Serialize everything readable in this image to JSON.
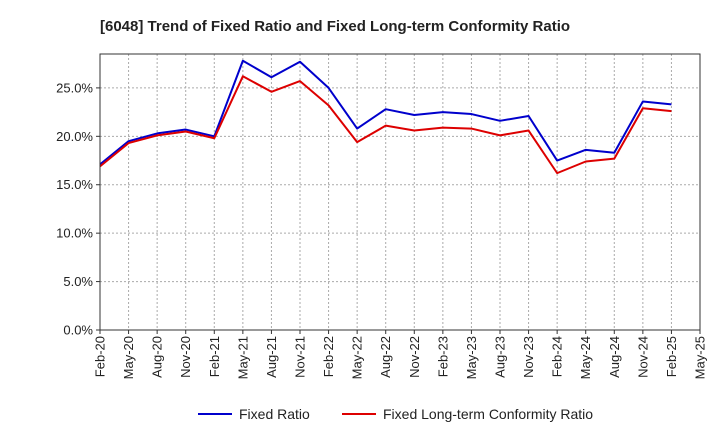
{
  "chart_data": {
    "type": "line",
    "title": "[6048]  Trend of Fixed Ratio and Fixed Long-term Conformity Ratio",
    "xlabel": "",
    "ylabel": "",
    "x": [
      "Feb-20",
      "May-20",
      "Aug-20",
      "Nov-20",
      "Feb-21",
      "May-21",
      "Aug-21",
      "Nov-21",
      "Feb-22",
      "May-22",
      "Aug-22",
      "Nov-22",
      "Feb-23",
      "May-23",
      "Aug-23",
      "Nov-23",
      "Feb-24",
      "May-24",
      "Aug-24",
      "Nov-24",
      "Feb-25",
      "May-25"
    ],
    "yticks": [
      "0.0%",
      "5.0%",
      "10.0%",
      "15.0%",
      "20.0%",
      "25.0%"
    ],
    "ylim": [
      0,
      28.5
    ],
    "grid": true,
    "legend_position": "bottom",
    "series": [
      {
        "name": "Fixed Ratio",
        "color": "#0000cc",
        "values": [
          17.1,
          19.5,
          20.3,
          20.7,
          20.0,
          27.8,
          26.1,
          27.7,
          25.0,
          20.8,
          22.8,
          22.2,
          22.5,
          22.3,
          21.6,
          22.1,
          17.5,
          18.6,
          18.3,
          23.6,
          23.3,
          null
        ]
      },
      {
        "name": "Fixed Long-term Conformity Ratio",
        "color": "#dd0000",
        "values": [
          16.9,
          19.3,
          20.1,
          20.5,
          19.8,
          26.2,
          24.6,
          25.7,
          23.2,
          19.4,
          21.1,
          20.6,
          20.9,
          20.8,
          20.1,
          20.6,
          16.2,
          17.4,
          17.7,
          22.9,
          22.6,
          null
        ]
      }
    ]
  }
}
